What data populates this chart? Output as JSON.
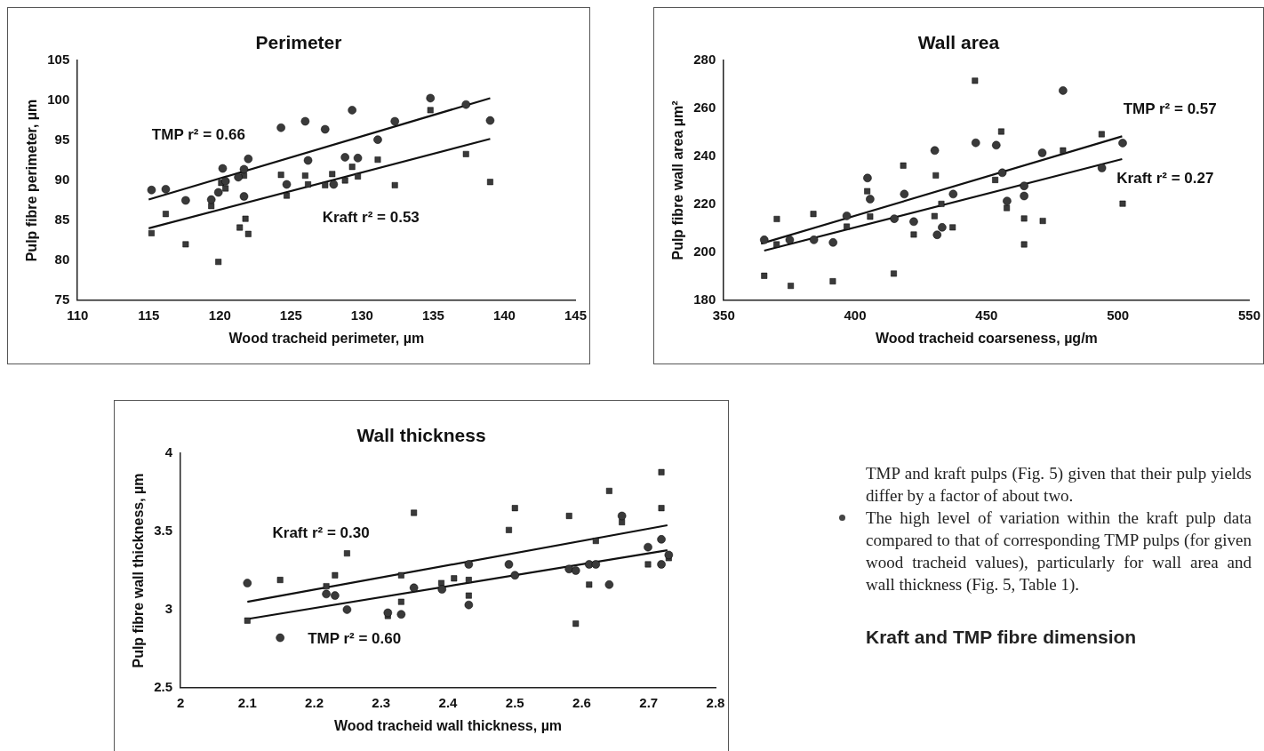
{
  "chart_data": [
    {
      "type": "scatter",
      "title": "Perimeter",
      "xlabel": "Wood tracheid perimeter, µm",
      "ylabel": "Pulp fibre perimeter, µm",
      "xlim": [
        110,
        145
      ],
      "xticks": [
        110,
        115,
        120,
        125,
        130,
        135,
        140,
        145
      ],
      "ylim": [
        75,
        105
      ],
      "yticks": [
        75,
        80,
        85,
        90,
        95,
        100,
        105
      ],
      "grid": false,
      "legend": false,
      "annotations": [
        "TMP r² = 0.66",
        "Kraft r² = 0.53"
      ],
      "series": [
        {
          "type": "scatter",
          "marker": "circle",
          "color": "#3a3a3a",
          "x": [
            115.2,
            116.2,
            117.6,
            119.4,
            119.9,
            120.2,
            120.4,
            121.3,
            121.7,
            122.0,
            121.7,
            124.3,
            126.0,
            126.2,
            124.7,
            127.4,
            134.8,
            137.3,
            139.0,
            129.3,
            132.3,
            131.1,
            128.8,
            129.7,
            128.0
          ],
          "values": [
            88.8,
            88.9,
            87.5,
            87.6,
            88.5,
            91.5,
            89.9,
            90.4,
            91.4,
            92.7,
            88.0,
            96.6,
            97.4,
            92.5,
            89.5,
            96.4,
            100.3,
            99.5,
            97.5,
            98.8,
            97.4,
            95.1,
            92.9,
            92.8,
            89.5
          ]
        },
        {
          "type": "scatter",
          "marker": "square",
          "color": "#3a3a3a",
          "x": [
            115.2,
            116.2,
            117.6,
            119.4,
            119.9,
            120.1,
            120.4,
            121.7,
            121.8,
            121.4,
            122.0,
            124.3,
            124.7,
            126.0,
            126.2,
            127.4,
            127.9,
            128.8,
            129.3,
            129.7,
            131.1,
            132.3,
            134.8,
            137.3,
            139.0
          ],
          "values": [
            83.4,
            85.8,
            82.0,
            86.8,
            79.8,
            89.7,
            89.0,
            90.6,
            85.2,
            84.1,
            83.3,
            90.7,
            88.1,
            90.6,
            89.5,
            89.4,
            90.8,
            90.0,
            91.7,
            90.5,
            92.6,
            89.4,
            98.8,
            93.3,
            89.8
          ]
        },
        {
          "type": "line",
          "marker": "none",
          "color": "#111111",
          "x": [
            115,
            139
          ],
          "values": [
            87.6,
            100.3
          ]
        },
        {
          "type": "line",
          "marker": "none",
          "color": "#111111",
          "x": [
            115,
            139
          ],
          "values": [
            84.0,
            95.2
          ]
        }
      ]
    },
    {
      "type": "scatter",
      "title": "Wall area",
      "xlabel": "Wood tracheid coarseness, µg/m",
      "ylabel": "Pulp fibre wall area µm²",
      "xlim": [
        350,
        550
      ],
      "xticks": [
        350,
        400,
        450,
        500,
        550
      ],
      "ylim": [
        180,
        280
      ],
      "yticks": [
        180,
        200,
        220,
        240,
        260,
        280
      ],
      "grid": false,
      "legend": false,
      "annotations": [
        "TMP r² = 0.57",
        "Kraft r² = 0.27"
      ],
      "series": [
        {
          "type": "scatter",
          "marker": "circle",
          "color": "#3a3a3a",
          "x": [
            365.4,
            375.1,
            384.3,
            391.6,
            396.8,
            404.7,
            405.7,
            414.9,
            418.7,
            422.3,
            430.3,
            431.2,
            433.1,
            437.3,
            445.9,
            453.7,
            456.0,
            457.8,
            479.1,
            471.2,
            464.3,
            464.3,
            493.9,
            501.8
          ],
          "values": [
            205.2,
            205.2,
            205.2,
            204.1,
            215.2,
            231.0,
            222.2,
            214.0,
            224.3,
            212.8,
            242.5,
            207.3,
            210.4,
            224.3,
            245.7,
            244.7,
            233.2,
            221.4,
            267.5,
            241.5,
            227.7,
            223.5,
            235.2,
            245.6
          ]
        },
        {
          "type": "scatter",
          "marker": "square",
          "color": "#3a3a3a",
          "x": [
            445.6,
            455.6,
            418.3,
            430.7,
            404.6,
            405.7,
            384.1,
            370.2,
            396.8,
            370.1,
            432.8,
            430.2,
            422.3,
            437.1,
            453.3,
            457.7,
            365.4,
            375.5,
            391.5,
            414.7,
            493.8,
            479.1,
            464.3,
            471.4,
            464.3,
            501.8
          ],
          "values": [
            271.6,
            250.4,
            236.2,
            232.1,
            225.5,
            214.9,
            216.0,
            213.9,
            210.7,
            203.3,
            220.2,
            215.1,
            207.4,
            210.4,
            230.2,
            218.5,
            190.2,
            186.0,
            187.9,
            191.1,
            249.3,
            242.5,
            214.1,
            213.1,
            203.3,
            220.3
          ]
        },
        {
          "type": "line",
          "marker": "none",
          "color": "#111111",
          "x": [
            364.2,
            501.6
          ],
          "values": [
            203.6,
            248.4
          ]
        },
        {
          "type": "line",
          "marker": "none",
          "color": "#111111",
          "x": [
            365.4,
            501.6
          ],
          "values": [
            200.7,
            238.9
          ]
        }
      ]
    },
    {
      "type": "scatter",
      "title": "Wall thickness",
      "xlabel": "Wood tracheid wall thickness, µm",
      "ylabel": "Pulp fibre wall thickness, µm",
      "xlim": [
        2,
        2.8
      ],
      "xticks": [
        2,
        2.1,
        2.2,
        2.3,
        2.4,
        2.5,
        2.6,
        2.7,
        2.8
      ],
      "ylim": [
        2.5,
        4
      ],
      "yticks": [
        2.5,
        3,
        3.5,
        4
      ],
      "grid": false,
      "legend": false,
      "annotations": [
        "Kraft r² = 0.30",
        "TMP r² = 0.60"
      ],
      "series": [
        {
          "type": "scatter",
          "marker": "circle",
          "color": "#3a3a3a",
          "x": [
            2.1,
            2.218,
            2.231,
            2.249,
            2.31,
            2.33,
            2.349,
            2.391,
            2.149,
            2.431,
            2.431,
            2.491,
            2.5,
            2.581,
            2.591,
            2.611,
            2.621,
            2.641,
            2.699,
            2.719,
            2.719,
            2.73,
            2.66
          ],
          "values": [
            3.17,
            3.1,
            3.09,
            3.0,
            2.98,
            2.97,
            3.14,
            3.13,
            2.82,
            3.29,
            3.03,
            3.29,
            3.22,
            3.26,
            3.25,
            3.29,
            3.29,
            3.16,
            3.4,
            3.45,
            3.29,
            3.35,
            3.6
          ]
        },
        {
          "type": "scatter",
          "marker": "square",
          "color": "#3a3a3a",
          "x": [
            2.1,
            2.149,
            2.218,
            2.231,
            2.249,
            2.33,
            2.33,
            2.31,
            2.349,
            2.39,
            2.409,
            2.719,
            2.641,
            2.719,
            2.5,
            2.581,
            2.491,
            2.66,
            2.621,
            2.699,
            2.611,
            2.591,
            2.431,
            2.431,
            2.73
          ],
          "values": [
            2.93,
            3.19,
            3.15,
            3.22,
            3.36,
            3.22,
            3.05,
            2.96,
            3.62,
            3.17,
            3.2,
            3.88,
            3.76,
            3.65,
            3.65,
            3.6,
            3.51,
            3.56,
            3.44,
            3.29,
            3.16,
            2.91,
            3.19,
            3.09,
            3.33
          ]
        },
        {
          "type": "line",
          "marker": "none",
          "color": "#111111",
          "x": [
            2.1,
            2.728
          ],
          "values": [
            3.05,
            3.54
          ]
        },
        {
          "type": "line",
          "marker": "none",
          "color": "#111111",
          "x": [
            2.1,
            2.728
          ],
          "values": [
            2.94,
            3.38
          ]
        }
      ]
    },
    {
      "type": "other",
      "title": "Kraft and TMP fibre dimension",
      "annotations": [
        "TMP and kraft pulps (Fig. 5) given that their pulp yields differ by a factor of about two.",
        "The high level of variation within the kraft pulp data compared to that of corresponding TMP pulps (for given wood tracheid values), particularly for wall area and wall thickness (Fig. 5, Table 1)."
      ]
    }
  ]
}
